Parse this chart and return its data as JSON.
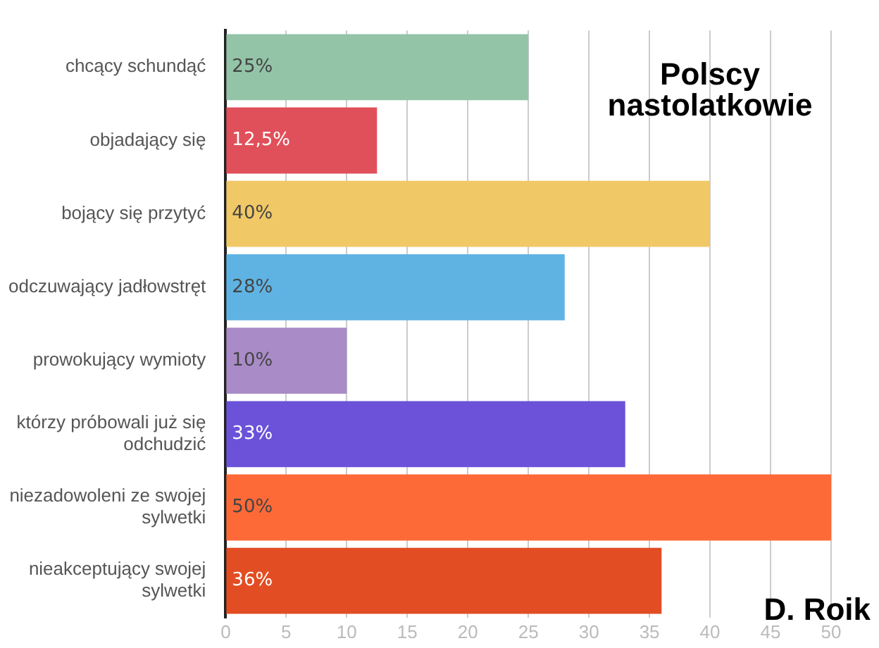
{
  "chart_data": {
    "type": "bar",
    "orientation": "horizontal",
    "title": "Polscy nastolatkowie",
    "categories": [
      "chcący schundąć",
      "objadający się",
      "bojący się przytyć",
      "odczuwający jadłowstręt",
      "prowokujący wymioty",
      "którzy próbowali już się odchudzić",
      "niezadowoleni ze swojej sylwetki",
      "nieakceptujący swojej sylwetki"
    ],
    "values": [
      25,
      12.5,
      40,
      28,
      10,
      33,
      50,
      36
    ],
    "colors": [
      "#93c4a8",
      "#e0505a",
      "#f0c866",
      "#5fb3e3",
      "#a98bc8",
      "#6b52d9",
      "#fd6a38",
      "#e34d23"
    ],
    "value_labels": [
      "25%",
      "12,5%",
      "40%",
      "28%",
      "10%",
      "33%",
      "50%",
      "36%"
    ],
    "xlim": [
      0,
      50
    ],
    "xticks": [
      0,
      5,
      10,
      15,
      20,
      25,
      30,
      35,
      40,
      45,
      50
    ],
    "grid": "x",
    "legend": false,
    "annotations": [
      "D. Roik"
    ]
  }
}
